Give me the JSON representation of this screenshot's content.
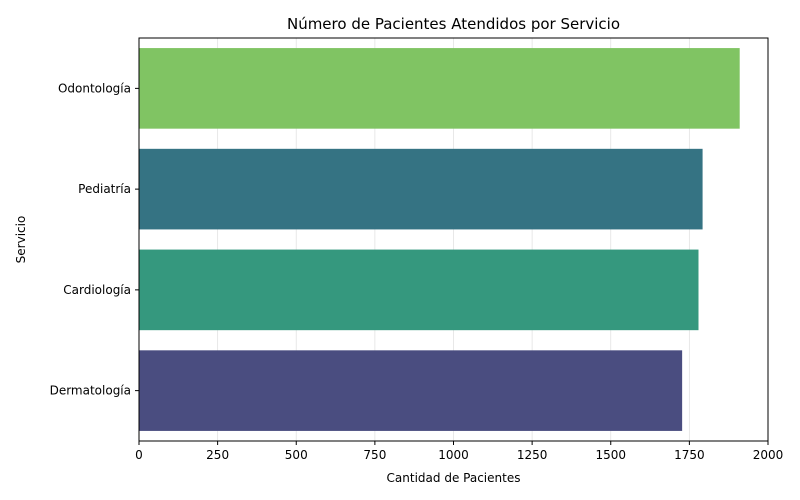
{
  "chart_data": {
    "type": "bar",
    "orientation": "horizontal",
    "title": "Número de Pacientes Atendidos por Servicio",
    "xlabel": "Cantidad de Pacientes",
    "ylabel": "Servicio",
    "categories": [
      "Odontología",
      "Pediatría",
      "Cardiología",
      "Dermatología"
    ],
    "values": [
      1910,
      1792,
      1779,
      1727
    ],
    "colors": [
      "#80c463",
      "#357383",
      "#35987e",
      "#4a4d80"
    ],
    "xlim": [
      0,
      2000
    ],
    "xticks": [
      0,
      250,
      500,
      750,
      1000,
      1250,
      1500,
      1750,
      2000
    ],
    "grid": "vertical",
    "legend": "none"
  }
}
